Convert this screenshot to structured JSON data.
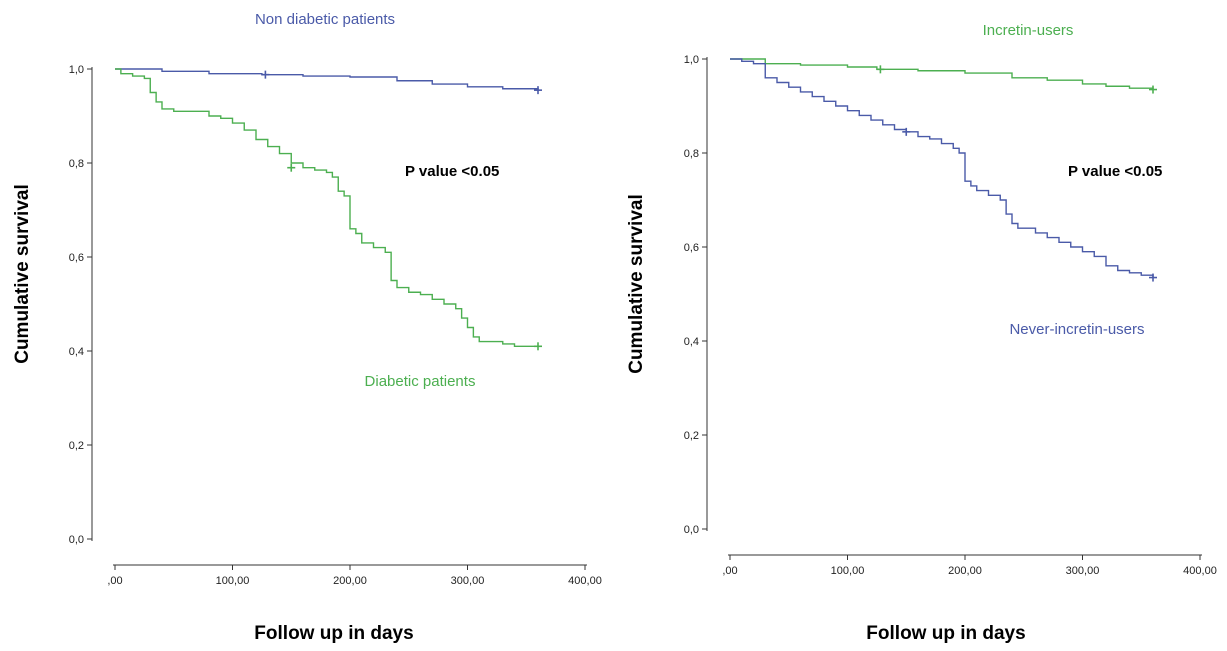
{
  "chart_data": [
    {
      "type": "line",
      "subtype": "kaplan-meier",
      "xlabel": "Follow up in days",
      "ylabel": "Cumulative survival",
      "xlim": [
        0,
        400
      ],
      "ylim": [
        0,
        1
      ],
      "x_ticks": [
        ",00",
        "100,00",
        "200,00",
        "300,00",
        "400,00"
      ],
      "y_ticks": [
        "0,0",
        "0,2",
        "0,4",
        "0,6",
        "0,8",
        "1,0"
      ],
      "grid": false,
      "annotation": "P value <0.05",
      "series": [
        {
          "name": "Non diabetic patients",
          "color": "#4a5aa8",
          "points": [
            [
              0,
              1.0
            ],
            [
              40,
              0.995
            ],
            [
              80,
              0.99
            ],
            [
              125,
              0.988
            ],
            [
              160,
              0.985
            ],
            [
              200,
              0.983
            ],
            [
              240,
              0.975
            ],
            [
              270,
              0.968
            ],
            [
              300,
              0.962
            ],
            [
              330,
              0.958
            ],
            [
              360,
              0.955
            ]
          ],
          "censored": [
            [
              128,
              0.988
            ],
            [
              360,
              0.955
            ]
          ]
        },
        {
          "name": "Diabetic patients",
          "color": "#4caf50",
          "points": [
            [
              0,
              1.0
            ],
            [
              5,
              0.99
            ],
            [
              15,
              0.985
            ],
            [
              25,
              0.98
            ],
            [
              30,
              0.95
            ],
            [
              35,
              0.93
            ],
            [
              40,
              0.915
            ],
            [
              50,
              0.91
            ],
            [
              70,
              0.91
            ],
            [
              80,
              0.9
            ],
            [
              90,
              0.895
            ],
            [
              100,
              0.885
            ],
            [
              110,
              0.87
            ],
            [
              120,
              0.85
            ],
            [
              130,
              0.835
            ],
            [
              140,
              0.82
            ],
            [
              150,
              0.8
            ],
            [
              160,
              0.79
            ],
            [
              170,
              0.785
            ],
            [
              180,
              0.78
            ],
            [
              185,
              0.77
            ],
            [
              190,
              0.74
            ],
            [
              195,
              0.73
            ],
            [
              200,
              0.66
            ],
            [
              205,
              0.65
            ],
            [
              210,
              0.63
            ],
            [
              220,
              0.62
            ],
            [
              230,
              0.61
            ],
            [
              235,
              0.55
            ],
            [
              240,
              0.535
            ],
            [
              250,
              0.525
            ],
            [
              260,
              0.52
            ],
            [
              270,
              0.51
            ],
            [
              280,
              0.5
            ],
            [
              290,
              0.49
            ],
            [
              295,
              0.47
            ],
            [
              300,
              0.45
            ],
            [
              305,
              0.43
            ],
            [
              310,
              0.42
            ],
            [
              320,
              0.42
            ],
            [
              330,
              0.415
            ],
            [
              340,
              0.41
            ],
            [
              350,
              0.41
            ],
            [
              360,
              0.41
            ]
          ],
          "censored": [
            [
              150,
              0.79
            ],
            [
              360,
              0.41
            ]
          ]
        }
      ]
    },
    {
      "type": "line",
      "subtype": "kaplan-meier",
      "xlabel": "Follow up in days",
      "ylabel": "Cumulative survival",
      "xlim": [
        0,
        400
      ],
      "ylim": [
        0,
        1
      ],
      "x_ticks": [
        ",00",
        "100,00",
        "200,00",
        "300,00",
        "400,00"
      ],
      "y_ticks": [
        "0,0",
        "0,2",
        "0,4",
        "0,6",
        "0,8",
        "1,0"
      ],
      "grid": false,
      "annotation": "P value <0.05",
      "series": [
        {
          "name": "Incretin-users",
          "color": "#4caf50",
          "points": [
            [
              0,
              1.0
            ],
            [
              30,
              0.99
            ],
            [
              60,
              0.987
            ],
            [
              100,
              0.983
            ],
            [
              125,
              0.978
            ],
            [
              160,
              0.975
            ],
            [
              200,
              0.97
            ],
            [
              240,
              0.96
            ],
            [
              270,
              0.955
            ],
            [
              300,
              0.947
            ],
            [
              320,
              0.942
            ],
            [
              340,
              0.938
            ],
            [
              360,
              0.935
            ]
          ],
          "censored": [
            [
              128,
              0.978
            ],
            [
              360,
              0.935
            ]
          ]
        },
        {
          "name": "Never-incretin-users",
          "color": "#4a5aa8",
          "points": [
            [
              0,
              1.0
            ],
            [
              10,
              0.995
            ],
            [
              20,
              0.99
            ],
            [
              30,
              0.96
            ],
            [
              40,
              0.95
            ],
            [
              50,
              0.94
            ],
            [
              60,
              0.93
            ],
            [
              70,
              0.92
            ],
            [
              80,
              0.91
            ],
            [
              90,
              0.9
            ],
            [
              100,
              0.89
            ],
            [
              110,
              0.88
            ],
            [
              120,
              0.87
            ],
            [
              130,
              0.86
            ],
            [
              140,
              0.85
            ],
            [
              150,
              0.845
            ],
            [
              160,
              0.835
            ],
            [
              170,
              0.83
            ],
            [
              180,
              0.82
            ],
            [
              190,
              0.81
            ],
            [
              195,
              0.8
            ],
            [
              200,
              0.74
            ],
            [
              205,
              0.73
            ],
            [
              210,
              0.72
            ],
            [
              220,
              0.71
            ],
            [
              230,
              0.7
            ],
            [
              235,
              0.67
            ],
            [
              240,
              0.65
            ],
            [
              245,
              0.64
            ],
            [
              260,
              0.63
            ],
            [
              270,
              0.62
            ],
            [
              280,
              0.61
            ],
            [
              290,
              0.6
            ],
            [
              300,
              0.59
            ],
            [
              310,
              0.58
            ],
            [
              320,
              0.56
            ],
            [
              330,
              0.55
            ],
            [
              340,
              0.545
            ],
            [
              350,
              0.54
            ],
            [
              360,
              0.535
            ]
          ],
          "censored": [
            [
              150,
              0.845
            ],
            [
              360,
              0.535
            ]
          ]
        }
      ]
    }
  ]
}
